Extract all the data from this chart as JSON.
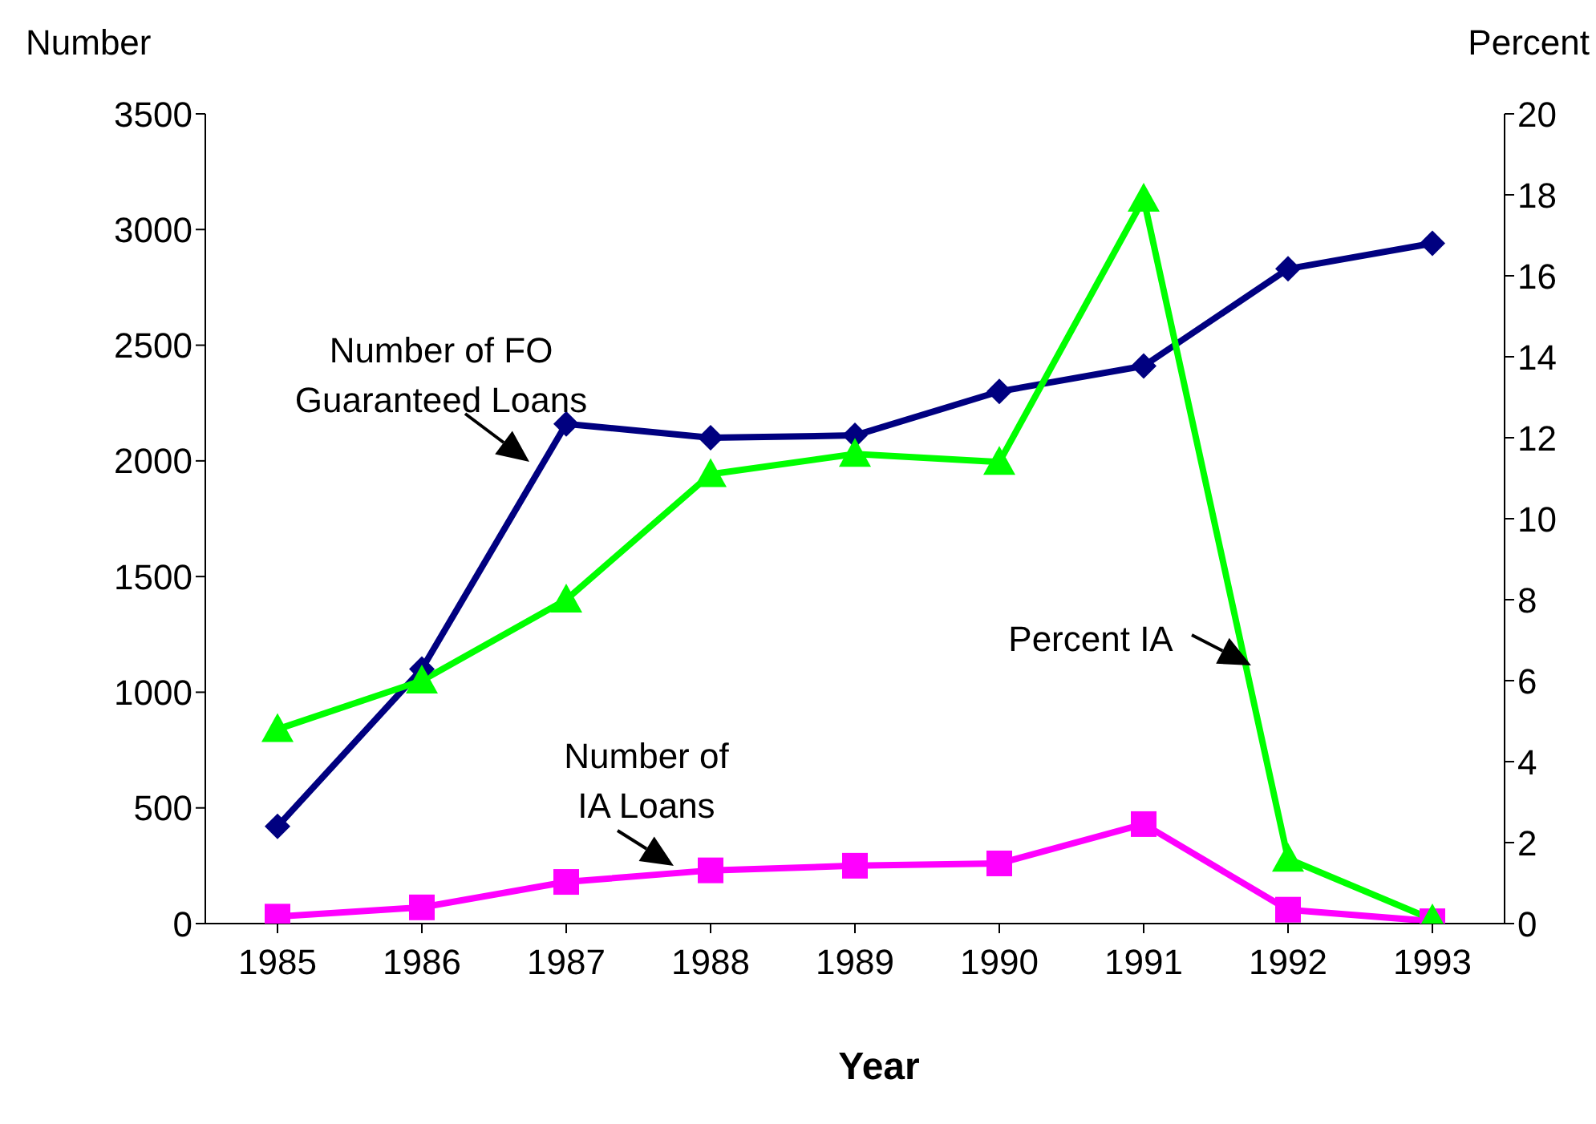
{
  "chart_data": {
    "type": "line",
    "xlabel": "Year",
    "ylabel": "Number",
    "y2label": "Percent",
    "categories": [
      "1985",
      "1986",
      "1987",
      "1988",
      "1989",
      "1990",
      "1991",
      "1992",
      "1993"
    ],
    "series": [
      {
        "name": "Number of FO\nGuaranteed Loans",
        "color": "#000080",
        "marker": "diamond",
        "values": [
          420,
          1100,
          2160,
          2100,
          2110,
          2300,
          2410,
          2830,
          2940
        ]
      },
      {
        "name": "Number of\nIA Loans",
        "color": "#ff00ff",
        "marker": "square",
        "values": [
          30,
          70,
          180,
          230,
          250,
          260,
          430,
          60,
          10
        ]
      },
      {
        "name": "Percent IA",
        "color": "#00ff00",
        "marker": "triangle",
        "axis": "y2",
        "values": [
          4.8,
          6.0,
          8.0,
          11.1,
          11.6,
          11.4,
          17.9,
          1.6,
          0.1
        ]
      }
    ],
    "ylim": [
      0,
      3500
    ],
    "yticks": [
      0,
      500,
      1000,
      1500,
      2000,
      2500,
      3000,
      3500
    ],
    "y2lim": [
      0,
      20
    ],
    "y2ticks": [
      0,
      2,
      4,
      6,
      8,
      10,
      12,
      14,
      16,
      18,
      20
    ],
    "grid": false,
    "line_style": "solid"
  }
}
